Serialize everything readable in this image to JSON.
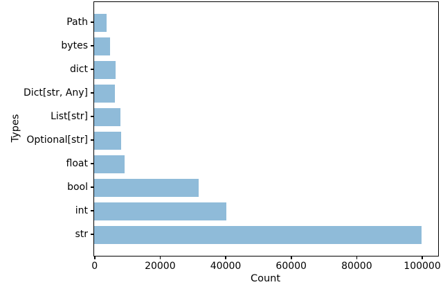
{
  "chart_data": {
    "type": "bar",
    "orientation": "horizontal",
    "title": "",
    "xlabel": "Count",
    "ylabel": "Types",
    "categories": [
      "Path",
      "bytes",
      "dict",
      "Dict[str, Any]",
      "List[str]",
      "Optional[str]",
      "float",
      "bool",
      "int",
      "str"
    ],
    "values": [
      3800,
      4800,
      6500,
      6400,
      8100,
      8200,
      9300,
      31900,
      40300,
      100000
    ],
    "xlim": [
      0,
      105000
    ],
    "xticks": [
      0,
      20000,
      40000,
      60000,
      80000,
      100000
    ],
    "xtick_labels": [
      "0",
      "20000",
      "40000",
      "60000",
      "80000",
      "100000"
    ],
    "grid": false,
    "legend": null,
    "bar_color": "#8fbbd9",
    "spine_color": "#000000",
    "text_color": "#000000",
    "background_color": "#ffffff"
  }
}
